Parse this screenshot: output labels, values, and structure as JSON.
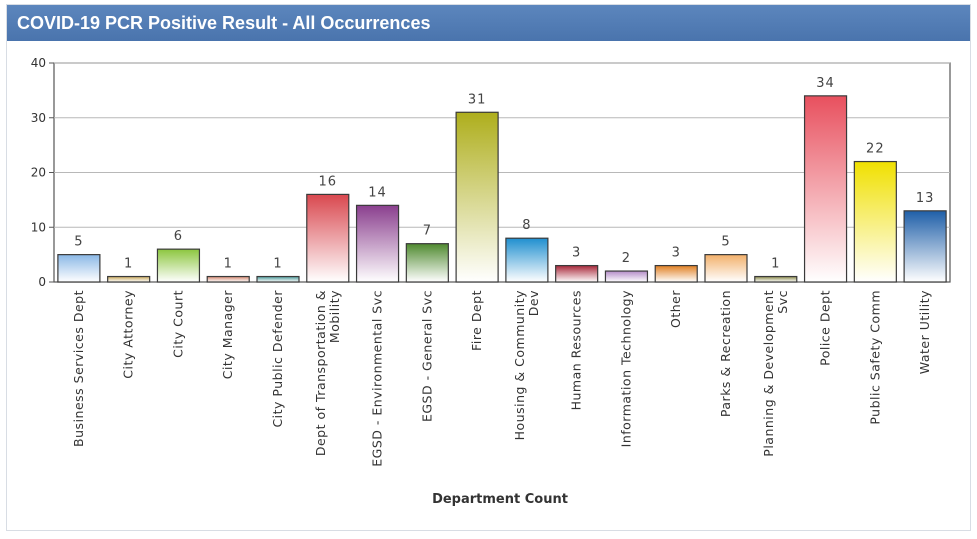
{
  "header": {
    "title": "COVID-19 PCR Positive Result - All Occurrences"
  },
  "chart_data": {
    "type": "bar",
    "title": "COVID-19 PCR Positive Result - All Occurrences",
    "xlabel": "Department Count",
    "ylabel": "",
    "ylim": [
      0,
      40
    ],
    "yticks": [
      0,
      10,
      20,
      30,
      40
    ],
    "grid": true,
    "legend": "none",
    "categories": [
      [
        "Business Services Dept"
      ],
      [
        "City Attorney"
      ],
      [
        "City Court"
      ],
      [
        "City Manager"
      ],
      [
        "City Public Defender"
      ],
      [
        "Dept of Transportation &",
        "Mobility"
      ],
      [
        "EGSD - Environmental Svc"
      ],
      [
        "EGSD - General Svc"
      ],
      [
        "Fire Dept"
      ],
      [
        "Housing & Community",
        "Dev"
      ],
      [
        "Human Resources"
      ],
      [
        "Information Technology"
      ],
      [
        "Other"
      ],
      [
        "Parks & Recreation"
      ],
      [
        "Planning & Development",
        "Svc"
      ],
      [
        "Police Dept"
      ],
      [
        "Public Safety Comm"
      ],
      [
        "Water Utility"
      ]
    ],
    "values": [
      5,
      1,
      6,
      1,
      1,
      16,
      14,
      7,
      31,
      8,
      3,
      2,
      3,
      5,
      1,
      34,
      22,
      13
    ],
    "data_labels": [
      "5",
      "1",
      "6",
      "1",
      "1",
      "16",
      "14",
      "7",
      "31",
      "8",
      "3",
      "2",
      "3",
      "5",
      "1",
      "34",
      "22",
      "13"
    ],
    "colors": [
      "#8ab8e6",
      "#c8a85a",
      "#8cc63e",
      "#d48870",
      "#4a9a9a",
      "#d9484f",
      "#8a3f8e",
      "#4f8a2f",
      "#aeae1c",
      "#1f8fcf",
      "#a8283a",
      "#b48cc8",
      "#e07f22",
      "#f2b06a",
      "#8a8a4a",
      "#e8505e",
      "#f0e000",
      "#1f5fa8"
    ]
  }
}
